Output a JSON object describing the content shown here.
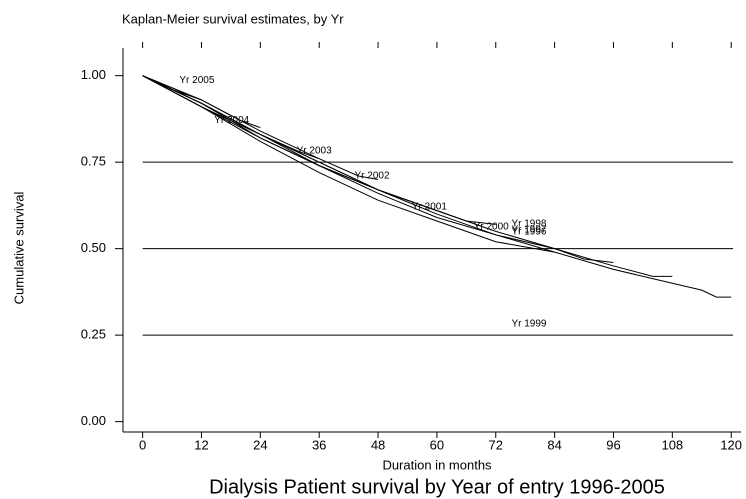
{
  "chart_data": {
    "type": "line",
    "title": "Kaplan-Meier survival estimates, by Yr",
    "subtitle": "Dialysis Patient survival by Year of entry 1996-2005",
    "x_label": "Duration in months",
    "y_label": "Cumulative survival",
    "xlim": [
      -4,
      122
    ],
    "ylim": [
      -0.03,
      1.08
    ],
    "xticks": [
      0,
      12,
      24,
      36,
      48,
      60,
      72,
      84,
      96,
      108,
      120
    ],
    "yticks": [
      {
        "value": 0,
        "label": "0.00"
      },
      {
        "value": 0.25,
        "label": "0.25"
      },
      {
        "value": 0.5,
        "label": "0.50"
      },
      {
        "value": 0.75,
        "label": "0.75"
      },
      {
        "value": 1,
        "label": "1.00"
      }
    ],
    "grid": true,
    "series": [
      {
        "name": "Yr 1996",
        "color": "#000000",
        "x": [
          0,
          12,
          24,
          36,
          48,
          60,
          72,
          84,
          96,
          108,
          114,
          117,
          120
        ],
        "values": [
          1,
          0.92,
          0.82,
          0.74,
          0.66,
          0.59,
          0.54,
          0.49,
          0.44,
          0.4,
          0.38,
          0.36,
          0.36
        ]
      },
      {
        "name": "Yr 1997",
        "color": "#000000",
        "x": [
          0,
          12,
          24,
          36,
          48,
          60,
          72,
          84,
          96,
          104,
          108
        ],
        "values": [
          1,
          0.91,
          0.83,
          0.74,
          0.67,
          0.6,
          0.54,
          0.5,
          0.45,
          0.42,
          0.42
        ]
      },
      {
        "name": "Yr 1998",
        "color": "#000000",
        "x": [
          0,
          12,
          24,
          36,
          48,
          60,
          72,
          84,
          90,
          96
        ],
        "values": [
          1,
          0.92,
          0.83,
          0.75,
          0.67,
          0.61,
          0.55,
          0.5,
          0.47,
          0.46
        ]
      },
      {
        "name": "Yr 1999",
        "color": "#000000",
        "x": [
          0,
          12,
          24,
          36,
          48,
          60,
          72,
          84
        ],
        "values": [
          1,
          0.91,
          0.81,
          0.72,
          0.64,
          0.58,
          0.52,
          0.49
        ]
      },
      {
        "name": "Yr 2000",
        "color": "#000000",
        "x": [
          0,
          12,
          24,
          36,
          48,
          60,
          66,
          72
        ],
        "values": [
          1,
          0.92,
          0.83,
          0.75,
          0.67,
          0.61,
          0.58,
          0.57
        ]
      },
      {
        "name": "Yr 2001",
        "color": "#000000",
        "x": [
          0,
          12,
          24,
          36,
          48,
          60
        ],
        "values": [
          1,
          0.91,
          0.82,
          0.74,
          0.67,
          0.61
        ]
      },
      {
        "name": "Yr 2002",
        "color": "#000000",
        "x": [
          0,
          12,
          24,
          36,
          44,
          48
        ],
        "values": [
          1,
          0.93,
          0.84,
          0.76,
          0.71,
          0.7
        ]
      },
      {
        "name": "Yr 2003",
        "color": "#000000",
        "x": [
          0,
          12,
          24,
          32,
          36
        ],
        "values": [
          1,
          0.92,
          0.83,
          0.78,
          0.76
        ]
      },
      {
        "name": "Yr 2004",
        "color": "#000000",
        "x": [
          0,
          12,
          20,
          24
        ],
        "values": [
          1,
          0.93,
          0.87,
          0.85
        ]
      },
      {
        "name": "Yr 2005",
        "color": "#000000",
        "x": [
          0,
          6,
          12
        ],
        "values": [
          1,
          0.96,
          0.93
        ]
      }
    ],
    "annotations": [
      {
        "text": "Yr 2005",
        "x": 7.5,
        "y": 0.986
      },
      {
        "text": "Yr 2004",
        "x": 14.6,
        "y": 0.871
      },
      {
        "text": "Yr 2003",
        "x": 31.4,
        "y": 0.782
      },
      {
        "text": "Yr 2002",
        "x": 43.2,
        "y": 0.71
      },
      {
        "text": "Yr 2001",
        "x": 54.9,
        "y": 0.621
      },
      {
        "text": "Yr 2000",
        "x": 67.5,
        "y": 0.563
      },
      {
        "text": "Yr 1998",
        "x": 75.2,
        "y": 0.572
      },
      {
        "text": "Yr 1997",
        "x": 75.2,
        "y": 0.555
      },
      {
        "text": "Yr 1996",
        "x": 75.2,
        "y": 0.549
      },
      {
        "text": "Yr 1999",
        "x": 75.2,
        "y": 0.282
      }
    ]
  }
}
